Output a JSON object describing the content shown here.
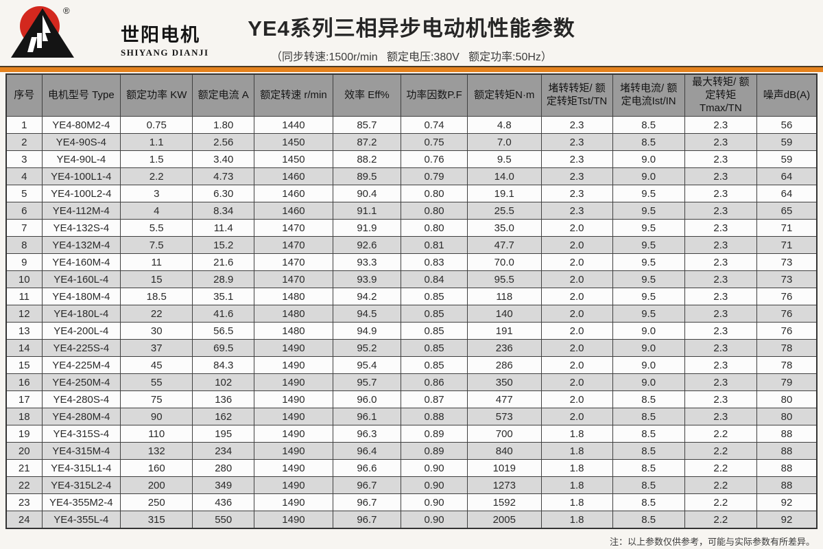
{
  "logo": {
    "cn_name": "世阳电机",
    "en_name": "SHIYANG DIANJI",
    "registered_mark": "®",
    "colors": {
      "sun_red": "#d3281e",
      "mountain_black": "#141414"
    }
  },
  "header": {
    "title": "YE4系列三相异步电动机性能参数",
    "subtitle": "（同步转速:1500r/min   额定电压:380V   额定功率:50Hz）"
  },
  "accent": {
    "orange_bar": "#e5821d",
    "header_gray": "#9b9b9b",
    "stripe_gray": "#d9d9d9"
  },
  "table": {
    "columns": [
      {
        "label": "序号",
        "width": "4.4%"
      },
      {
        "label": "电机型号 Type",
        "width": "9.7%"
      },
      {
        "label": "额定功率 KW",
        "width": "8.9%"
      },
      {
        "label": "额定电流 A",
        "width": "7.6%"
      },
      {
        "label": "额定转速 r/min",
        "width": "9.7%"
      },
      {
        "label": "效率 Eff%",
        "width": "8.4%"
      },
      {
        "label": "功率因数P.F",
        "width": "8.2%"
      },
      {
        "label": "额定转矩N·m",
        "width": "9.1%"
      },
      {
        "label": "堵转转矩/ 额\n定转矩Tst/TN",
        "width": "8.8%"
      },
      {
        "label": "堵转电流/ 额\n定电流Ist/IN",
        "width": "8.9%"
      },
      {
        "label": "最大转矩/ 额\n定转矩Tmax/TN",
        "width": "8.9%"
      },
      {
        "label": "噪声dB(A)",
        "width": "7.4%"
      }
    ],
    "rows": [
      [
        "1",
        "YE4-80M2-4",
        "0.75",
        "1.80",
        "1440",
        "85.7",
        "0.74",
        "4.8",
        "2.3",
        "8.5",
        "2.3",
        "56"
      ],
      [
        "2",
        "YE4-90S-4",
        "1.1",
        "2.56",
        "1450",
        "87.2",
        "0.75",
        "7.0",
        "2.3",
        "8.5",
        "2.3",
        "59"
      ],
      [
        "3",
        "YE4-90L-4",
        "1.5",
        "3.40",
        "1450",
        "88.2",
        "0.76",
        "9.5",
        "2.3",
        "9.0",
        "2.3",
        "59"
      ],
      [
        "4",
        "YE4-100L1-4",
        "2.2",
        "4.73",
        "1460",
        "89.5",
        "0.79",
        "14.0",
        "2.3",
        "9.0",
        "2.3",
        "64"
      ],
      [
        "5",
        "YE4-100L2-4",
        "3",
        "6.30",
        "1460",
        "90.4",
        "0.80",
        "19.1",
        "2.3",
        "9.5",
        "2.3",
        "64"
      ],
      [
        "6",
        "YE4-112M-4",
        "4",
        "8.34",
        "1460",
        "91.1",
        "0.80",
        "25.5",
        "2.3",
        "9.5",
        "2.3",
        "65"
      ],
      [
        "7",
        "YE4-132S-4",
        "5.5",
        "11.4",
        "1470",
        "91.9",
        "0.80",
        "35.0",
        "2.0",
        "9.5",
        "2.3",
        "71"
      ],
      [
        "8",
        "YE4-132M-4",
        "7.5",
        "15.2",
        "1470",
        "92.6",
        "0.81",
        "47.7",
        "2.0",
        "9.5",
        "2.3",
        "71"
      ],
      [
        "9",
        "YE4-160M-4",
        "11",
        "21.6",
        "1470",
        "93.3",
        "0.83",
        "70.0",
        "2.0",
        "9.5",
        "2.3",
        "73"
      ],
      [
        "10",
        "YE4-160L-4",
        "15",
        "28.9",
        "1470",
        "93.9",
        "0.84",
        "95.5",
        "2.0",
        "9.5",
        "2.3",
        "73"
      ],
      [
        "11",
        "YE4-180M-4",
        "18.5",
        "35.1",
        "1480",
        "94.2",
        "0.85",
        "118",
        "2.0",
        "9.5",
        "2.3",
        "76"
      ],
      [
        "12",
        "YE4-180L-4",
        "22",
        "41.6",
        "1480",
        "94.5",
        "0.85",
        "140",
        "2.0",
        "9.5",
        "2.3",
        "76"
      ],
      [
        "13",
        "YE4-200L-4",
        "30",
        "56.5",
        "1480",
        "94.9",
        "0.85",
        "191",
        "2.0",
        "9.0",
        "2.3",
        "76"
      ],
      [
        "14",
        "YE4-225S-4",
        "37",
        "69.5",
        "1490",
        "95.2",
        "0.85",
        "236",
        "2.0",
        "9.0",
        "2.3",
        "78"
      ],
      [
        "15",
        "YE4-225M-4",
        "45",
        "84.3",
        "1490",
        "95.4",
        "0.85",
        "286",
        "2.0",
        "9.0",
        "2.3",
        "78"
      ],
      [
        "16",
        "YE4-250M-4",
        "55",
        "102",
        "1490",
        "95.7",
        "0.86",
        "350",
        "2.0",
        "9.0",
        "2.3",
        "79"
      ],
      [
        "17",
        "YE4-280S-4",
        "75",
        "136",
        "1490",
        "96.0",
        "0.87",
        "477",
        "2.0",
        "8.5",
        "2.3",
        "80"
      ],
      [
        "18",
        "YE4-280M-4",
        "90",
        "162",
        "1490",
        "96.1",
        "0.88",
        "573",
        "2.0",
        "8.5",
        "2.3",
        "80"
      ],
      [
        "19",
        "YE4-315S-4",
        "110",
        "195",
        "1490",
        "96.3",
        "0.89",
        "700",
        "1.8",
        "8.5",
        "2.2",
        "88"
      ],
      [
        "20",
        "YE4-315M-4",
        "132",
        "234",
        "1490",
        "96.4",
        "0.89",
        "840",
        "1.8",
        "8.5",
        "2.2",
        "88"
      ],
      [
        "21",
        "YE4-315L1-4",
        "160",
        "280",
        "1490",
        "96.6",
        "0.90",
        "1019",
        "1.8",
        "8.5",
        "2.2",
        "88"
      ],
      [
        "22",
        "YE4-315L2-4",
        "200",
        "349",
        "1490",
        "96.7",
        "0.90",
        "1273",
        "1.8",
        "8.5",
        "2.2",
        "88"
      ],
      [
        "23",
        "YE4-355M2-4",
        "250",
        "436",
        "1490",
        "96.7",
        "0.90",
        "1592",
        "1.8",
        "8.5",
        "2.2",
        "92"
      ],
      [
        "24",
        "YE4-355L-4",
        "315",
        "550",
        "1490",
        "96.7",
        "0.90",
        "2005",
        "1.8",
        "8.5",
        "2.2",
        "92"
      ]
    ]
  },
  "footer": {
    "note": "注：以上参数仅供参考，可能与实际参数有所差异。"
  }
}
